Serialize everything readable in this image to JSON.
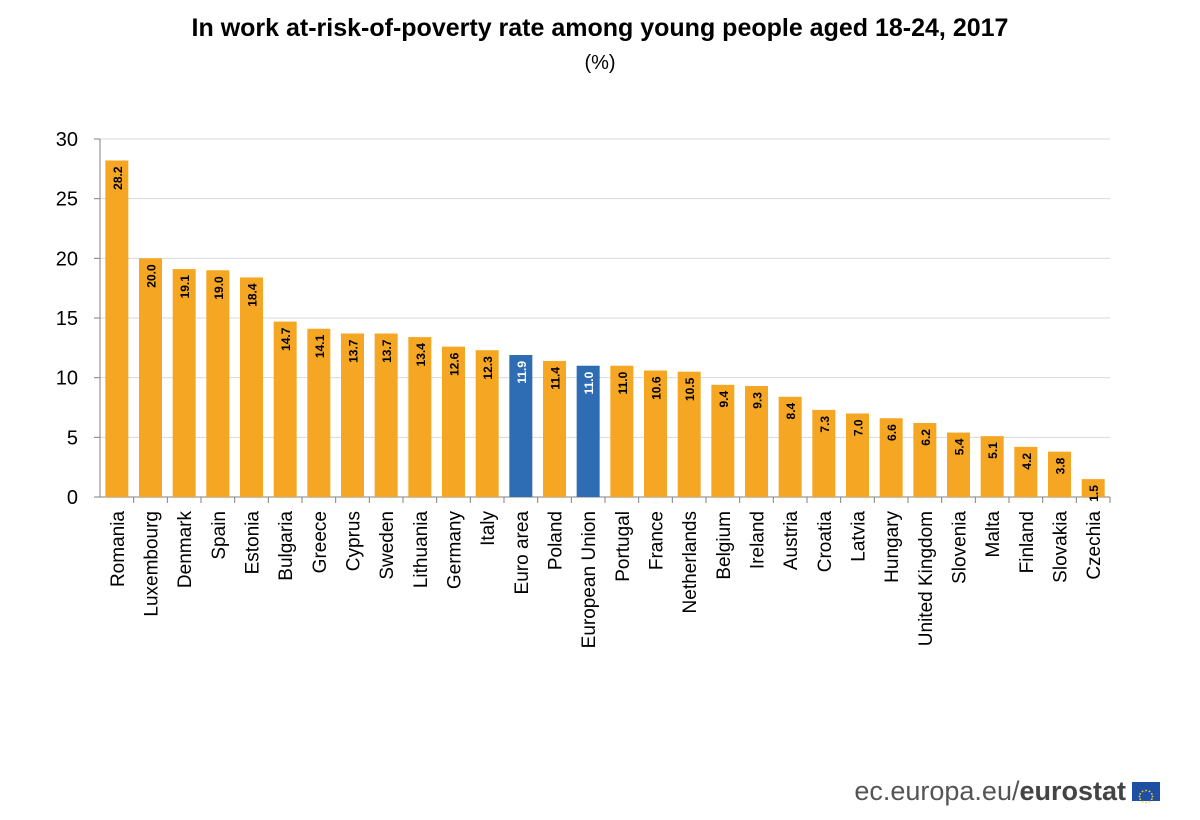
{
  "chart_data": {
    "type": "bar",
    "title": "In work at-risk-of-poverty rate among young people aged 18-24, 2017",
    "subtitle": "(%)",
    "xlabel": "",
    "ylabel": "",
    "ylim": [
      0,
      30
    ],
    "yticks": [
      0,
      5,
      10,
      15,
      20,
      25,
      30
    ],
    "grid": true,
    "categories": [
      "Romania",
      "Luxembourg",
      "Denmark",
      "Spain",
      "Estonia",
      "Bulgaria",
      "Greece",
      "Cyprus",
      "Sweden",
      "Lithuania",
      "Germany",
      "Italy",
      "Euro area",
      "Poland",
      "European Union",
      "Portugal",
      "France",
      "Netherlands",
      "Belgium",
      "Ireland",
      "Austria",
      "Croatia",
      "Latvia",
      "Hungary",
      "United Kingdom",
      "Slovenia",
      "Malta",
      "Finland",
      "Slovakia",
      "Czechia"
    ],
    "values": [
      28.2,
      20.0,
      19.1,
      19.0,
      18.4,
      14.7,
      14.1,
      13.7,
      13.7,
      13.4,
      12.6,
      12.3,
      11.9,
      11.4,
      11.0,
      11.0,
      10.6,
      10.5,
      9.4,
      9.3,
      8.4,
      7.3,
      7.0,
      6.6,
      6.2,
      5.4,
      5.1,
      4.2,
      3.8,
      1.5
    ],
    "highlighted": [
      "Euro area",
      "European Union"
    ],
    "colors": {
      "bar": "#F5A623",
      "highlight": "#2E6DB4",
      "grid": "#D9D9D9",
      "axis": "#808080"
    }
  },
  "footer": {
    "source": "ec.europa.eu/",
    "brand": "eurostat"
  }
}
